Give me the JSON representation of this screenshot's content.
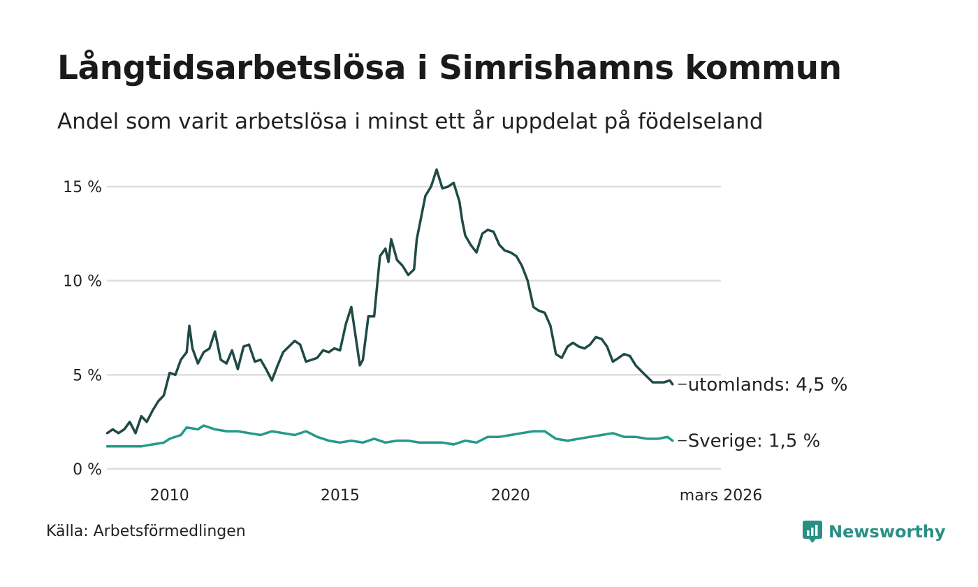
{
  "header": {
    "title": "Långtidsarbetslösa i Simrishamns kommun",
    "subtitle": "Andel som varit arbetslösa i minst ett år uppdelat på födelseland"
  },
  "footer": {
    "source": "Källa: Arbetsförmedlingen",
    "brand": "Newsworthy"
  },
  "colors": {
    "utomlands": "#1f4a45",
    "sverige": "#26998c",
    "grid": "#dddddd",
    "brand": "#2a8f84"
  },
  "chart_data": {
    "type": "line",
    "title": "Långtidsarbetslösa i Simrishamns kommun",
    "xlabel": "",
    "ylabel": "",
    "ylim": [
      0,
      16
    ],
    "xlim": [
      2008.16,
      2026.17
    ],
    "y_ticks": [
      0,
      5,
      10,
      15
    ],
    "y_tick_labels": [
      "0 %",
      "5 %",
      "10 %",
      "15 %"
    ],
    "x_ticks": [
      2010,
      2015,
      2020,
      2026.17
    ],
    "x_tick_labels": [
      "2010",
      "2015",
      "2020",
      "mars 2026"
    ],
    "grid": true,
    "series": [
      {
        "name": "utomlands",
        "end_label": "utomlands: 4,5 %",
        "points": [
          [
            2008.17,
            1.9
          ],
          [
            2008.33,
            2.1
          ],
          [
            2008.5,
            1.9
          ],
          [
            2008.67,
            2.1
          ],
          [
            2008.83,
            2.5
          ],
          [
            2009.0,
            1.9
          ],
          [
            2009.17,
            2.8
          ],
          [
            2009.33,
            2.5
          ],
          [
            2009.5,
            3.1
          ],
          [
            2009.67,
            3.6
          ],
          [
            2009.83,
            3.9
          ],
          [
            2010.0,
            5.1
          ],
          [
            2010.17,
            5.0
          ],
          [
            2010.33,
            5.8
          ],
          [
            2010.5,
            6.2
          ],
          [
            2010.58,
            7.6
          ],
          [
            2010.67,
            6.4
          ],
          [
            2010.83,
            5.6
          ],
          [
            2011.0,
            6.2
          ],
          [
            2011.17,
            6.4
          ],
          [
            2011.33,
            7.3
          ],
          [
            2011.5,
            5.8
          ],
          [
            2011.67,
            5.6
          ],
          [
            2011.83,
            6.3
          ],
          [
            2012.0,
            5.3
          ],
          [
            2012.17,
            6.5
          ],
          [
            2012.33,
            6.6
          ],
          [
            2012.5,
            5.7
          ],
          [
            2012.67,
            5.8
          ],
          [
            2012.83,
            5.3
          ],
          [
            2013.0,
            4.7
          ],
          [
            2013.17,
            5.5
          ],
          [
            2013.33,
            6.2
          ],
          [
            2013.5,
            6.5
          ],
          [
            2013.67,
            6.8
          ],
          [
            2013.83,
            6.6
          ],
          [
            2014.0,
            5.7
          ],
          [
            2014.17,
            5.8
          ],
          [
            2014.33,
            5.9
          ],
          [
            2014.5,
            6.3
          ],
          [
            2014.67,
            6.2
          ],
          [
            2014.83,
            6.4
          ],
          [
            2015.0,
            6.3
          ],
          [
            2015.17,
            7.7
          ],
          [
            2015.33,
            8.6
          ],
          [
            2015.5,
            6.5
          ],
          [
            2015.58,
            5.5
          ],
          [
            2015.67,
            5.8
          ],
          [
            2015.83,
            8.1
          ],
          [
            2016.0,
            8.1
          ],
          [
            2016.17,
            11.3
          ],
          [
            2016.33,
            11.7
          ],
          [
            2016.42,
            11.0
          ],
          [
            2016.5,
            12.2
          ],
          [
            2016.67,
            11.1
          ],
          [
            2016.83,
            10.8
          ],
          [
            2017.0,
            10.3
          ],
          [
            2017.17,
            10.6
          ],
          [
            2017.25,
            12.2
          ],
          [
            2017.5,
            14.5
          ],
          [
            2017.67,
            15.0
          ],
          [
            2017.83,
            15.9
          ],
          [
            2018.0,
            14.9
          ],
          [
            2018.17,
            15.0
          ],
          [
            2018.33,
            15.2
          ],
          [
            2018.5,
            14.2
          ],
          [
            2018.58,
            13.2
          ],
          [
            2018.67,
            12.4
          ],
          [
            2018.83,
            11.9
          ],
          [
            2019.0,
            11.5
          ],
          [
            2019.17,
            12.5
          ],
          [
            2019.33,
            12.7
          ],
          [
            2019.5,
            12.6
          ],
          [
            2019.67,
            11.9
          ],
          [
            2019.83,
            11.6
          ],
          [
            2020.0,
            11.5
          ],
          [
            2020.17,
            11.3
          ],
          [
            2020.33,
            10.8
          ],
          [
            2020.5,
            10.0
          ],
          [
            2020.67,
            8.6
          ],
          [
            2020.83,
            8.4
          ],
          [
            2021.0,
            8.3
          ],
          [
            2021.17,
            7.6
          ],
          [
            2021.33,
            6.1
          ],
          [
            2021.5,
            5.9
          ],
          [
            2021.67,
            6.5
          ],
          [
            2021.83,
            6.7
          ],
          [
            2022.0,
            6.5
          ],
          [
            2022.17,
            6.4
          ],
          [
            2022.33,
            6.6
          ],
          [
            2022.5,
            7.0
          ],
          [
            2022.67,
            6.9
          ],
          [
            2022.83,
            6.5
          ],
          [
            2023.0,
            5.7
          ],
          [
            2023.17,
            5.9
          ],
          [
            2023.33,
            6.1
          ],
          [
            2023.5,
            6.0
          ],
          [
            2023.67,
            5.5
          ],
          [
            2023.83,
            5.2
          ],
          [
            2024.0,
            4.9
          ],
          [
            2024.17,
            4.6
          ],
          [
            2024.33,
            4.6
          ],
          [
            2024.5,
            4.6
          ],
          [
            2024.67,
            4.7
          ],
          [
            2024.75,
            4.5
          ]
        ]
      },
      {
        "name": "Sverige",
        "end_label": "Sverige: 1,5 %",
        "points": [
          [
            2008.17,
            1.2
          ],
          [
            2008.5,
            1.2
          ],
          [
            2008.83,
            1.2
          ],
          [
            2009.17,
            1.2
          ],
          [
            2009.5,
            1.3
          ],
          [
            2009.83,
            1.4
          ],
          [
            2010.0,
            1.6
          ],
          [
            2010.33,
            1.8
          ],
          [
            2010.5,
            2.2
          ],
          [
            2010.83,
            2.1
          ],
          [
            2011.0,
            2.3
          ],
          [
            2011.33,
            2.1
          ],
          [
            2011.67,
            2.0
          ],
          [
            2012.0,
            2.0
          ],
          [
            2012.33,
            1.9
          ],
          [
            2012.67,
            1.8
          ],
          [
            2013.0,
            2.0
          ],
          [
            2013.33,
            1.9
          ],
          [
            2013.67,
            1.8
          ],
          [
            2014.0,
            2.0
          ],
          [
            2014.33,
            1.7
          ],
          [
            2014.67,
            1.5
          ],
          [
            2015.0,
            1.4
          ],
          [
            2015.33,
            1.5
          ],
          [
            2015.67,
            1.4
          ],
          [
            2016.0,
            1.6
          ],
          [
            2016.33,
            1.4
          ],
          [
            2016.67,
            1.5
          ],
          [
            2017.0,
            1.5
          ],
          [
            2017.33,
            1.4
          ],
          [
            2017.67,
            1.4
          ],
          [
            2018.0,
            1.4
          ],
          [
            2018.33,
            1.3
          ],
          [
            2018.67,
            1.5
          ],
          [
            2019.0,
            1.4
          ],
          [
            2019.33,
            1.7
          ],
          [
            2019.67,
            1.7
          ],
          [
            2020.0,
            1.8
          ],
          [
            2020.33,
            1.9
          ],
          [
            2020.67,
            2.0
          ],
          [
            2021.0,
            2.0
          ],
          [
            2021.33,
            1.6
          ],
          [
            2021.67,
            1.5
          ],
          [
            2022.0,
            1.6
          ],
          [
            2022.33,
            1.7
          ],
          [
            2022.67,
            1.8
          ],
          [
            2023.0,
            1.9
          ],
          [
            2023.33,
            1.7
          ],
          [
            2023.67,
            1.7
          ],
          [
            2024.0,
            1.6
          ],
          [
            2024.33,
            1.6
          ],
          [
            2024.6,
            1.7
          ],
          [
            2024.75,
            1.5
          ]
        ]
      }
    ]
  }
}
